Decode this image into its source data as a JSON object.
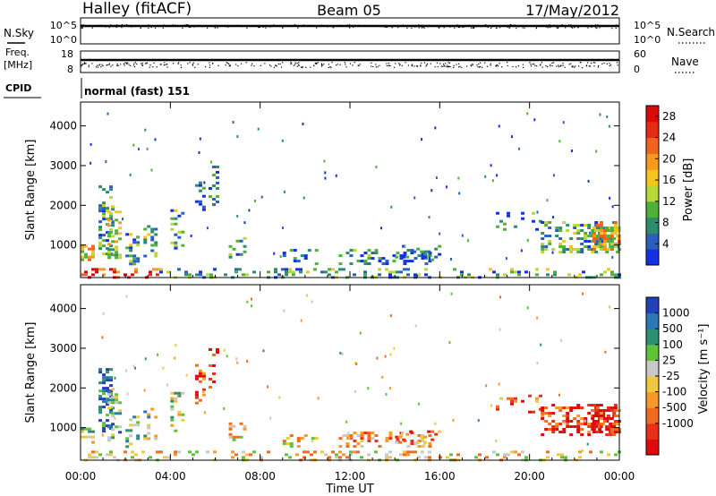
{
  "header": {
    "station": "Halley (fitACF)",
    "beam": "Beam 05",
    "date": "17/May/2012"
  },
  "top_panels": {
    "nsky": {
      "label": "N.Sky",
      "tick_hi": "10^5",
      "tick_lo": "10^0"
    },
    "nsearch": {
      "label": "N.Search",
      "tick_hi": "10^5",
      "tick_lo": "10^0"
    },
    "freq": {
      "label": "Freq.",
      "unit": "[MHz]",
      "tick_hi": "18",
      "tick_lo": "8"
    },
    "nave": {
      "label": "Nave",
      "tick_hi": "60",
      "tick_lo": "0"
    },
    "cpid": {
      "label": "CPID",
      "value": "normal (fast) 151"
    }
  },
  "chart_data": [
    {
      "type": "heatmap",
      "name": "power",
      "xlabel": "Time UT",
      "ylabel": "Slant Range [km]",
      "x_ticks": [
        "00:00",
        "04:00",
        "08:00",
        "12:00",
        "16:00",
        "20:00",
        "00:00"
      ],
      "x_range_hours": [
        0,
        24
      ],
      "y_ticks": [
        1000,
        2000,
        3000,
        4000
      ],
      "y_range_km": [
        180,
        4600
      ],
      "colorbar": {
        "label": "Power [dB]",
        "ticks": [
          4,
          8,
          12,
          16,
          20,
          24,
          28
        ],
        "range": [
          0,
          30
        ],
        "colors": [
          "#1430e6",
          "#2a5fbe",
          "#2e8c6e",
          "#4fb13a",
          "#b8d83a",
          "#f5c51e",
          "#f59a1e",
          "#f06420",
          "#e62b14",
          "#dc0a0a"
        ]
      }
    },
    {
      "type": "heatmap",
      "name": "velocity",
      "xlabel": "Time UT",
      "ylabel": "Slant Range [km]",
      "x_ticks": [
        "00:00",
        "04:00",
        "08:00",
        "12:00",
        "16:00",
        "20:00",
        "00:00"
      ],
      "x_range_hours": [
        0,
        24
      ],
      "y_ticks": [
        1000,
        2000,
        3000,
        4000
      ],
      "y_range_km": [
        180,
        4600
      ],
      "colorbar": {
        "label": "Velocity [m s⁻¹]",
        "ticks": [
          1000,
          500,
          100,
          25,
          -25,
          -100,
          -500,
          -1000
        ],
        "colors": [
          "#2340b8",
          "#2a78b4",
          "#2e9070",
          "#5ec23a",
          "#c8c8c8",
          "#f0c83c",
          "#f59a28",
          "#f06a20",
          "#e83018",
          "#e00a0a"
        ]
      }
    }
  ]
}
